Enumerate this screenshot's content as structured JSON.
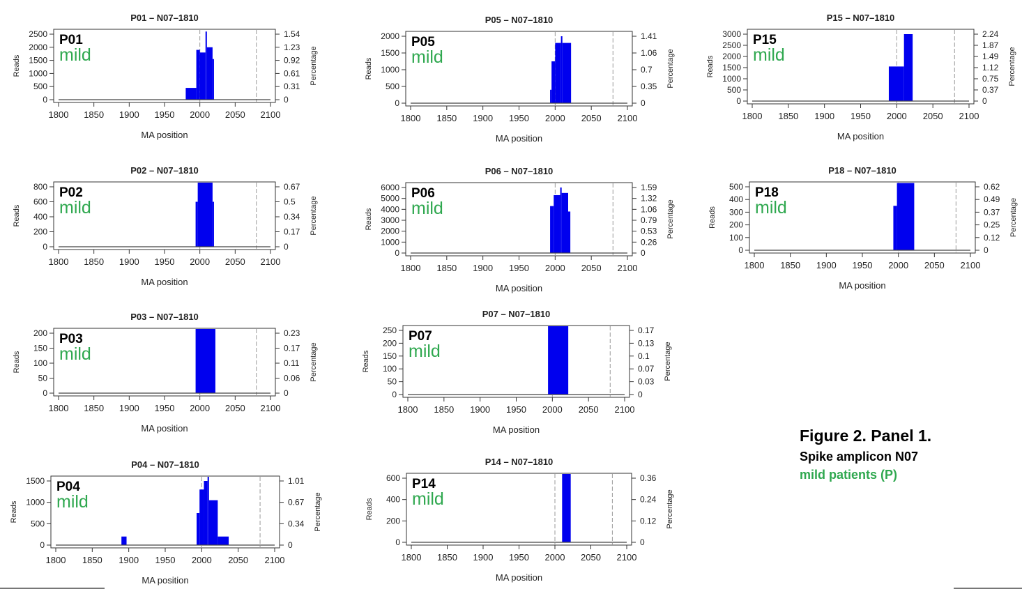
{
  "figure": {
    "title": "Figure 2. Panel 1.",
    "subtitle": "Spike amplicon N07",
    "group_label": "mild patients (P)",
    "group_color": "#2fa84f",
    "bar_color": "#0000ee"
  },
  "chart_data": [
    {
      "type": "bar",
      "title": "P01 – N07–1810",
      "panel_id": "P01",
      "severity": "mild",
      "xlabel": "MA position",
      "ylabel": "Reads",
      "y2label": "Percentage",
      "xlim": [
        1800,
        2100
      ],
      "x_ticks": [
        1800,
        1850,
        1900,
        1950,
        2000,
        2050,
        2100
      ],
      "ylim": [
        0,
        2500
      ],
      "y_ticks": [
        "0",
        "500",
        "1000",
        "1500",
        "2000",
        "2500"
      ],
      "y2_ticks": [
        "0",
        "0.31",
        "0.61",
        "0.92",
        "1.23",
        "1.54"
      ],
      "vlines": [
        2000,
        2080
      ],
      "bars": [
        {
          "x0": 1980,
          "x1": 1995,
          "value": 450
        },
        {
          "x0": 1995,
          "x1": 2000,
          "value": 1900
        },
        {
          "x0": 2000,
          "x1": 2008,
          "value": 1800
        },
        {
          "x0": 2008,
          "x1": 2010,
          "value": 2600
        },
        {
          "x0": 2010,
          "x1": 2018,
          "value": 2000
        },
        {
          "x0": 2018,
          "x1": 2020,
          "value": 1550
        }
      ]
    },
    {
      "type": "bar",
      "title": "P02 – N07–1810",
      "panel_id": "P02",
      "severity": "mild",
      "xlabel": "MA position",
      "ylabel": "Reads",
      "y2label": "Percentage",
      "xlim": [
        1800,
        2100
      ],
      "x_ticks": [
        1800,
        1850,
        1900,
        1950,
        2000,
        2050,
        2100
      ],
      "ylim": [
        0,
        800
      ],
      "y_ticks": [
        "0",
        "200",
        "400",
        "600",
        "800"
      ],
      "y2_ticks": [
        "0",
        "0.17",
        "0.34",
        "0.5",
        "0.67"
      ],
      "vlines": [
        2000,
        2080
      ],
      "bars": [
        {
          "x0": 1994,
          "x1": 1997,
          "value": 600
        },
        {
          "x0": 1997,
          "x1": 2018,
          "value": 870
        },
        {
          "x0": 2018,
          "x1": 2020,
          "value": 600
        }
      ]
    },
    {
      "type": "bar",
      "title": "P03 – N07–1810",
      "panel_id": "P03",
      "severity": "mild",
      "xlabel": "MA position",
      "ylabel": "Reads",
      "y2label": "Percentage",
      "xlim": [
        1800,
        2100
      ],
      "x_ticks": [
        1800,
        1850,
        1900,
        1950,
        2000,
        2050,
        2100
      ],
      "ylim": [
        0,
        200
      ],
      "y_ticks": [
        "0",
        "50",
        "100",
        "150",
        "200"
      ],
      "y2_ticks": [
        "0",
        "0.06",
        "0.11",
        "0.17",
        "0.23"
      ],
      "vlines": [
        2000,
        2080
      ],
      "bars": [
        {
          "x0": 1994,
          "x1": 2022,
          "value": 225
        }
      ]
    },
    {
      "type": "bar",
      "title": "P04 – N07–1810",
      "panel_id": "P04",
      "severity": "mild",
      "xlabel": "MA position",
      "ylabel": "Reads",
      "y2label": "Percentage",
      "xlim": [
        1800,
        2100
      ],
      "x_ticks": [
        1800,
        1850,
        1900,
        1950,
        2000,
        2050,
        2100
      ],
      "ylim": [
        0,
        1500
      ],
      "y_ticks": [
        "0",
        "500",
        "1000",
        "1500"
      ],
      "y2_ticks": [
        "0",
        "0.34",
        "0.67",
        "1.01"
      ],
      "vlines": [
        2000,
        2080
      ],
      "bars": [
        {
          "x0": 1890,
          "x1": 1897,
          "value": 200
        },
        {
          "x0": 1993,
          "x1": 1997,
          "value": 750
        },
        {
          "x0": 1997,
          "x1": 2003,
          "value": 1300
        },
        {
          "x0": 2003,
          "x1": 2008,
          "value": 1500
        },
        {
          "x0": 2008,
          "x1": 2010,
          "value": 1600
        },
        {
          "x0": 2010,
          "x1": 2022,
          "value": 1050
        },
        {
          "x0": 2022,
          "x1": 2037,
          "value": 200
        }
      ]
    },
    {
      "type": "bar",
      "title": "P05 – N07–1810",
      "panel_id": "P05",
      "severity": "mild",
      "xlabel": "MA position",
      "ylabel": "Reads",
      "y2label": "Percentage",
      "xlim": [
        1800,
        2100
      ],
      "x_ticks": [
        1800,
        1850,
        1900,
        1950,
        2000,
        2050,
        2100
      ],
      "ylim": [
        0,
        2000
      ],
      "y_ticks": [
        "0",
        "500",
        "1000",
        "1500",
        "2000"
      ],
      "y2_ticks": [
        "0",
        "0.35",
        "0.7",
        "1.06",
        "1.41"
      ],
      "vlines": [
        2000,
        2080
      ],
      "bars": [
        {
          "x0": 1993,
          "x1": 1995,
          "value": 400
        },
        {
          "x0": 1995,
          "x1": 2000,
          "value": 1250
        },
        {
          "x0": 2000,
          "x1": 2008,
          "value": 1800
        },
        {
          "x0": 2008,
          "x1": 2010,
          "value": 2000
        },
        {
          "x0": 2010,
          "x1": 2022,
          "value": 1800
        }
      ]
    },
    {
      "type": "bar",
      "title": "P06 – N07–1810",
      "panel_id": "P06",
      "severity": "mild",
      "xlabel": "MA position",
      "ylabel": "Reads",
      "y2label": "Percentage",
      "xlim": [
        1800,
        2100
      ],
      "x_ticks": [
        1800,
        1850,
        1900,
        1950,
        2000,
        2050,
        2100
      ],
      "ylim": [
        0,
        6000
      ],
      "y_ticks": [
        "0",
        "1000",
        "2000",
        "3000",
        "4000",
        "5000",
        "6000"
      ],
      "y2_ticks": [
        "0",
        "0.26",
        "0.53",
        "0.79",
        "1.06",
        "1.32",
        "1.59"
      ],
      "vlines": [
        2000,
        2080
      ],
      "bars": [
        {
          "x0": 1993,
          "x1": 1998,
          "value": 4300
        },
        {
          "x0": 1998,
          "x1": 2007,
          "value": 5300
        },
        {
          "x0": 2007,
          "x1": 2009,
          "value": 6000
        },
        {
          "x0": 2009,
          "x1": 2018,
          "value": 5500
        },
        {
          "x0": 2018,
          "x1": 2021,
          "value": 3800
        }
      ]
    },
    {
      "type": "bar",
      "title": "P07 – N07–1810",
      "panel_id": "P07",
      "severity": "mild",
      "xlabel": "MA position",
      "ylabel": "Reads",
      "y2label": "Percentage",
      "xlim": [
        1800,
        2100
      ],
      "x_ticks": [
        1800,
        1850,
        1900,
        1950,
        2000,
        2050,
        2100
      ],
      "ylim": [
        0,
        250
      ],
      "y_ticks": [
        "0",
        "50",
        "100",
        "150",
        "200",
        "250"
      ],
      "y2_ticks": [
        "0",
        "0.03",
        "0.07",
        "0.1",
        "0.13",
        "0.17"
      ],
      "vlines": [
        2000,
        2080
      ],
      "bars": [
        {
          "x0": 1994,
          "x1": 2022,
          "value": 275
        }
      ]
    },
    {
      "type": "bar",
      "title": "P14 – N07–1810",
      "panel_id": "P14",
      "severity": "mild",
      "xlabel": "MA position",
      "ylabel": "Reads",
      "y2label": "Percentage",
      "xlim": [
        1800,
        2100
      ],
      "x_ticks": [
        1800,
        1850,
        1900,
        1950,
        2000,
        2050,
        2100
      ],
      "ylim": [
        0,
        600
      ],
      "y_ticks": [
        "0",
        "200",
        "400",
        "600"
      ],
      "y2_ticks": [
        "0",
        "0.12",
        "0.24",
        "0.36"
      ],
      "vlines": [
        2000,
        2080
      ],
      "bars": [
        {
          "x0": 2010,
          "x1": 2022,
          "value": 720
        }
      ]
    },
    {
      "type": "bar",
      "title": "P15 – N07–1810",
      "panel_id": "P15",
      "severity": "mild",
      "xlabel": "MA position",
      "ylabel": "Reads",
      "y2label": "Percentage",
      "xlim": [
        1800,
        2100
      ],
      "x_ticks": [
        1800,
        1850,
        1900,
        1950,
        2000,
        2050,
        2100
      ],
      "ylim": [
        0,
        3000
      ],
      "y_ticks": [
        "0",
        "500",
        "1000",
        "1500",
        "2000",
        "2500",
        "3000"
      ],
      "y2_ticks": [
        "0",
        "0.37",
        "0.75",
        "1.12",
        "1.49",
        "1.87",
        "2.24"
      ],
      "vlines": [
        2000,
        2080
      ],
      "bars": [
        {
          "x0": 1989,
          "x1": 2010,
          "value": 1550
        },
        {
          "x0": 2010,
          "x1": 2022,
          "value": 3000
        }
      ]
    },
    {
      "type": "bar",
      "title": "P18 – N07–1810",
      "panel_id": "P18",
      "severity": "mild",
      "xlabel": "MA position",
      "ylabel": "Reads",
      "y2label": "Percentage",
      "xlim": [
        1800,
        2100
      ],
      "x_ticks": [
        1800,
        1850,
        1900,
        1950,
        2000,
        2050,
        2100
      ],
      "ylim": [
        0,
        500
      ],
      "y_ticks": [
        "0",
        "100",
        "200",
        "300",
        "400",
        "500"
      ],
      "y2_ticks": [
        "0",
        "0.12",
        "0.25",
        "0.37",
        "0.49",
        "0.62"
      ],
      "vlines": [
        2000,
        2080
      ],
      "bars": [
        {
          "x0": 1993,
          "x1": 1998,
          "value": 350
        },
        {
          "x0": 1998,
          "x1": 2022,
          "value": 530
        }
      ]
    }
  ]
}
